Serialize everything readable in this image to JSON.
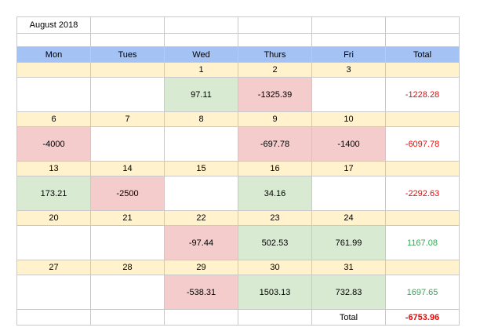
{
  "title": "August 2018",
  "header": {
    "days": [
      "Mon",
      "Tues",
      "Wed",
      "Thurs",
      "Fri",
      "Total"
    ]
  },
  "weeks": [
    {
      "dates": [
        "",
        "",
        "1",
        "2",
        "3",
        ""
      ],
      "values": [
        "",
        "",
        "97.11",
        "-1325.39",
        "",
        "-1228.28"
      ]
    },
    {
      "dates": [
        "6",
        "7",
        "8",
        "9",
        "10",
        ""
      ],
      "values": [
        "-4000",
        "",
        "",
        "-697.78",
        "-1400",
        "-6097.78"
      ]
    },
    {
      "dates": [
        "13",
        "14",
        "15",
        "16",
        "17",
        ""
      ],
      "values": [
        "173.21",
        "-2500",
        "",
        "34.16",
        "",
        "-2292.63"
      ]
    },
    {
      "dates": [
        "20",
        "21",
        "22",
        "23",
        "24",
        ""
      ],
      "values": [
        "",
        "",
        "-97.44",
        "502.53",
        "761.99",
        "1167.08"
      ]
    },
    {
      "dates": [
        "27",
        "28",
        "29",
        "30",
        "31",
        ""
      ],
      "values": [
        "",
        "",
        "-538.31",
        "1503.13",
        "732.83",
        "1697.65"
      ]
    }
  ],
  "footer": {
    "label": "Total",
    "value": "-6753.96"
  },
  "colors": {
    "header_bg": "#a4c2f4",
    "date_row_bg": "#fff2cc",
    "positive_cell_bg": "#d9ead3",
    "negative_cell_bg": "#f4cccc",
    "positive_text": "#34a853",
    "negative_text": "#ff0000",
    "gridline": "#c9c9c9"
  }
}
